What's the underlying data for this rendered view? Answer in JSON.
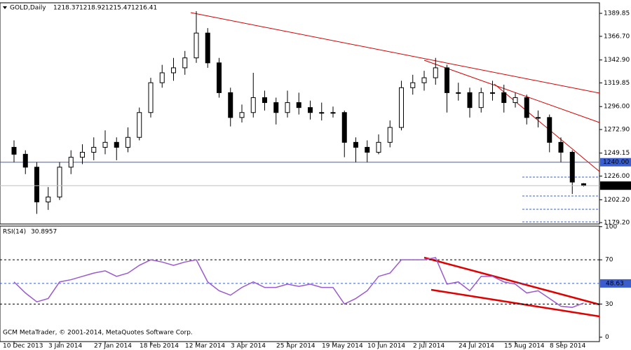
{
  "chart_data": [
    {
      "type": "candlestick",
      "title": "GOLD,Daily",
      "categories": [
        "10 Dec 2013",
        null,
        null,
        null,
        "3 Jan 2014",
        null,
        null,
        null,
        "27 Jan 2014",
        null,
        null,
        null,
        "18 Feb 2014",
        null,
        null,
        null,
        "12 Mar 2014",
        null,
        null,
        null,
        "3 Apr 2014",
        null,
        null,
        null,
        "25 Apr 2014",
        null,
        null,
        null,
        "19 May 2014",
        null,
        null,
        null,
        "10 Jun 2014",
        null,
        null,
        null,
        "2 Jul 2014",
        null,
        null,
        null,
        "24 Jul 2014",
        null,
        null,
        null,
        "15 Aug 2014",
        null,
        null,
        null,
        "8 Sep 2014",
        null,
        null
      ],
      "ohlc": [
        [
          1255,
          1262,
          1240,
          1248
        ],
        [
          1248,
          1252,
          1228,
          1235
        ],
        [
          1235,
          1240,
          1188,
          1200
        ],
        [
          1200,
          1215,
          1192,
          1205
        ],
        [
          1205,
          1240,
          1202,
          1235
        ],
        [
          1235,
          1252,
          1228,
          1245
        ],
        [
          1245,
          1258,
          1238,
          1250
        ],
        [
          1250,
          1265,
          1242,
          1255
        ],
        [
          1255,
          1272,
          1248,
          1260
        ],
        [
          1260,
          1265,
          1242,
          1255
        ],
        [
          1255,
          1275,
          1250,
          1265
        ],
        [
          1265,
          1295,
          1262,
          1290
        ],
        [
          1290,
          1325,
          1285,
          1320
        ],
        [
          1320,
          1338,
          1315,
          1330
        ],
        [
          1330,
          1345,
          1322,
          1335
        ],
        [
          1335,
          1352,
          1328,
          1345
        ],
        [
          1345,
          1392,
          1340,
          1370
        ],
        [
          1370,
          1375,
          1335,
          1340
        ],
        [
          1340,
          1345,
          1305,
          1310
        ],
        [
          1310,
          1315,
          1276,
          1285
        ],
        [
          1285,
          1298,
          1280,
          1290
        ],
        [
          1290,
          1330,
          1285,
          1305
        ],
        [
          1305,
          1312,
          1292,
          1300
        ],
        [
          1300,
          1305,
          1278,
          1290
        ],
        [
          1290,
          1312,
          1285,
          1300
        ],
        [
          1300,
          1310,
          1288,
          1295
        ],
        [
          1295,
          1302,
          1283,
          1290
        ],
        [
          1290,
          1300,
          1282,
          1290
        ],
        [
          1290,
          1296,
          1285,
          1290
        ],
        [
          1290,
          1292,
          1245,
          1260
        ],
        [
          1260,
          1265,
          1240,
          1255
        ],
        [
          1255,
          1262,
          1240,
          1250
        ],
        [
          1250,
          1268,
          1248,
          1260
        ],
        [
          1260,
          1282,
          1255,
          1275
        ],
        [
          1275,
          1322,
          1272,
          1315
        ],
        [
          1315,
          1328,
          1308,
          1320
        ],
        [
          1320,
          1332,
          1312,
          1325
        ],
        [
          1325,
          1345,
          1318,
          1335
        ],
        [
          1335,
          1338,
          1290,
          1310
        ],
        [
          1310,
          1320,
          1302,
          1310
        ],
        [
          1310,
          1315,
          1285,
          1295
        ],
        [
          1295,
          1315,
          1290,
          1310
        ],
        [
          1310,
          1322,
          1302,
          1310
        ],
        [
          1310,
          1318,
          1290,
          1300
        ],
        [
          1300,
          1310,
          1295,
          1305
        ],
        [
          1305,
          1308,
          1278,
          1285
        ],
        [
          1285,
          1292,
          1275,
          1285
        ],
        [
          1285,
          1288,
          1250,
          1260
        ],
        [
          1260,
          1265,
          1240,
          1250
        ],
        [
          1250,
          1252,
          1208,
          1220
        ],
        [
          1218.37,
          1218.92,
          1215.47,
          1216.41
        ]
      ],
      "ylim": [
        1177.8,
        1400.45
      ],
      "yticks": [
        {
          "value": 1389.85,
          "label": "1389.85"
        },
        {
          "value": 1366.7,
          "label": "1366.70"
        },
        {
          "value": 1342.9,
          "label": "1342.90"
        },
        {
          "value": 1319.85,
          "label": "1319.85"
        },
        {
          "value": 1296,
          "label": "1296.00"
        },
        {
          "value": 1272.9,
          "label": "1272.90"
        },
        {
          "value": 1249.15,
          "label": "1249.15"
        },
        {
          "value": 1226,
          "label": "1226.00"
        },
        {
          "value": 1202.2,
          "label": "1202.20"
        },
        {
          "value": 1179.2,
          "label": "1179.20"
        }
      ],
      "level": {
        "value": 1240,
        "label": "1240.00",
        "color": "#3a5fcd"
      },
      "color_up": "#ffffff",
      "color_down": "#000000"
    },
    {
      "type": "line",
      "title": "RSI(14)",
      "values": [
        50,
        40,
        32,
        35,
        50,
        52,
        55,
        58,
        60,
        55,
        58,
        65,
        70,
        68,
        65,
        68,
        70,
        50,
        42,
        38,
        45,
        50,
        45,
        45,
        48,
        46,
        48,
        45,
        45,
        30,
        35,
        42,
        55,
        58,
        70,
        70,
        70,
        72,
        48,
        50,
        42,
        55,
        55,
        50,
        48,
        40,
        42,
        35,
        28,
        27,
        30.8957
      ],
      "color": "#9b59d0",
      "ylim": [
        -4,
        100.5
      ],
      "yticks": [
        100,
        70,
        30,
        0
      ],
      "levels": [
        70,
        30
      ],
      "signal": 48.63,
      "signal_color": "#3a5fcd"
    }
  ],
  "footer": "GCM MetaTrader, © 2001-2014, MetaQuotes Software Corp."
}
